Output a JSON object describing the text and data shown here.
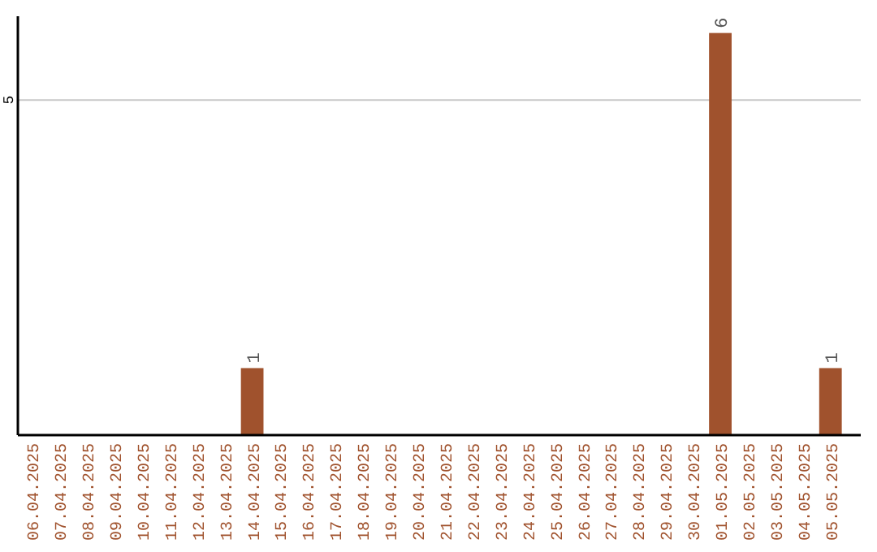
{
  "chart_data": {
    "type": "bar",
    "categories": [
      "06.04.2025",
      "07.04.2025",
      "08.04.2025",
      "09.04.2025",
      "10.04.2025",
      "11.04.2025",
      "12.04.2025",
      "13.04.2025",
      "14.04.2025",
      "15.04.2025",
      "16.04.2025",
      "17.04.2025",
      "18.04.2025",
      "19.04.2025",
      "20.04.2025",
      "21.04.2025",
      "22.04.2025",
      "23.04.2025",
      "24.04.2025",
      "25.04.2025",
      "26.04.2025",
      "27.04.2025",
      "28.04.2025",
      "29.04.2025",
      "30.04.2025",
      "01.05.2025",
      "02.05.2025",
      "03.05.2025",
      "04.05.2025",
      "05.05.2025"
    ],
    "values": [
      0,
      0,
      0,
      0,
      0,
      0,
      0,
      0,
      1,
      0,
      0,
      0,
      0,
      0,
      0,
      0,
      0,
      0,
      0,
      0,
      0,
      0,
      0,
      0,
      0,
      6,
      0,
      0,
      0,
      1
    ],
    "value_labels": [
      null,
      null,
      null,
      null,
      null,
      null,
      null,
      null,
      "1",
      null,
      null,
      null,
      null,
      null,
      null,
      null,
      null,
      null,
      null,
      null,
      null,
      null,
      null,
      null,
      null,
      "6",
      null,
      null,
      null,
      "1"
    ],
    "color": "#a0522d",
    "ylim": [
      0,
      6.25
    ],
    "yticks": [
      5
    ],
    "grid": "y"
  }
}
